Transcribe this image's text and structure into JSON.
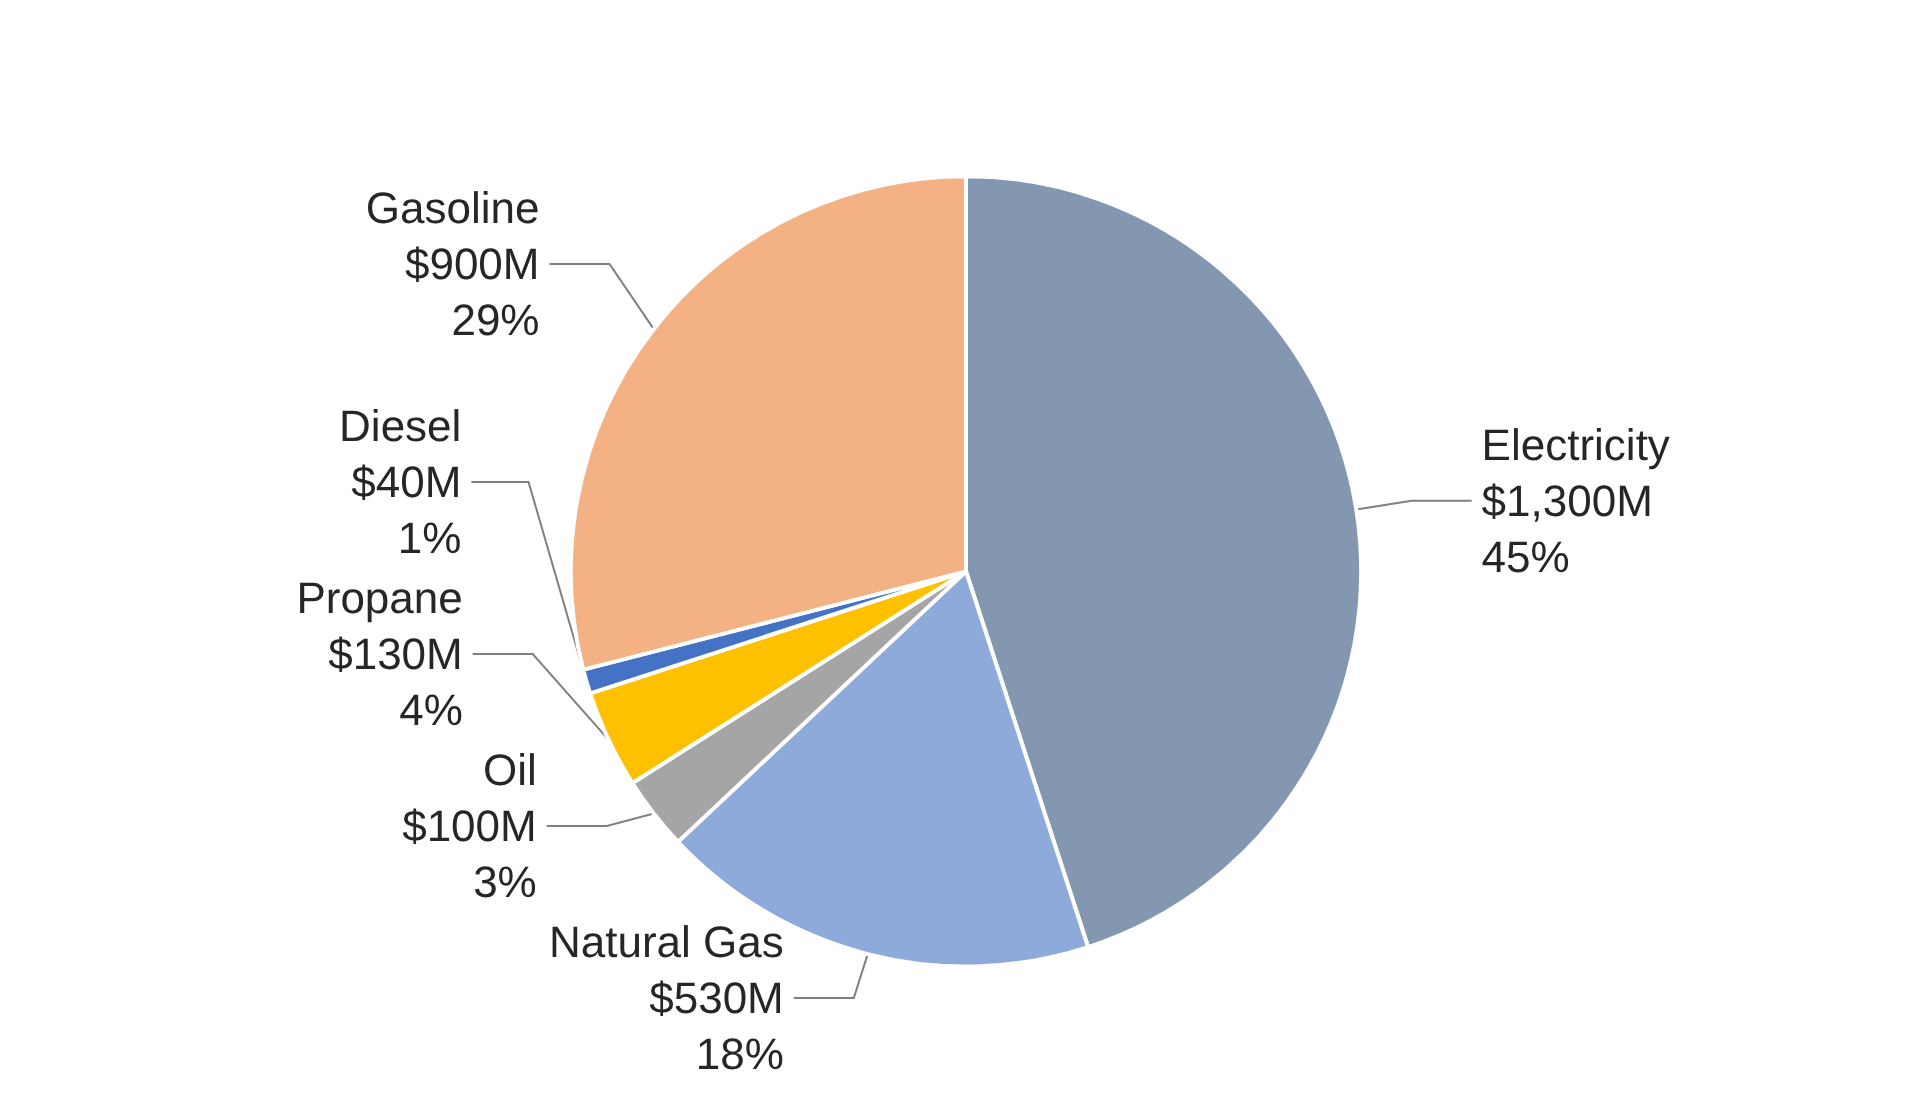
{
  "chart_data": {
    "type": "pie",
    "categories": [
      "Electricity",
      "Natural Gas",
      "Oil",
      "Propane",
      "Diesel",
      "Gasoline"
    ],
    "values": [
      45,
      18,
      3,
      4,
      1,
      29
    ],
    "value_labels": [
      "$1,300M\n45%",
      "$530M\n18%",
      "$100M\n3%",
      "$130M\n4%",
      "$40M\n1%",
      "$900M\n29%"
    ],
    "colors": [
      "#8497b0",
      "#8eaadb",
      "#a5a5a5",
      "#ffc000",
      "#4472c4",
      "#f4b183"
    ],
    "legend": false
  }
}
